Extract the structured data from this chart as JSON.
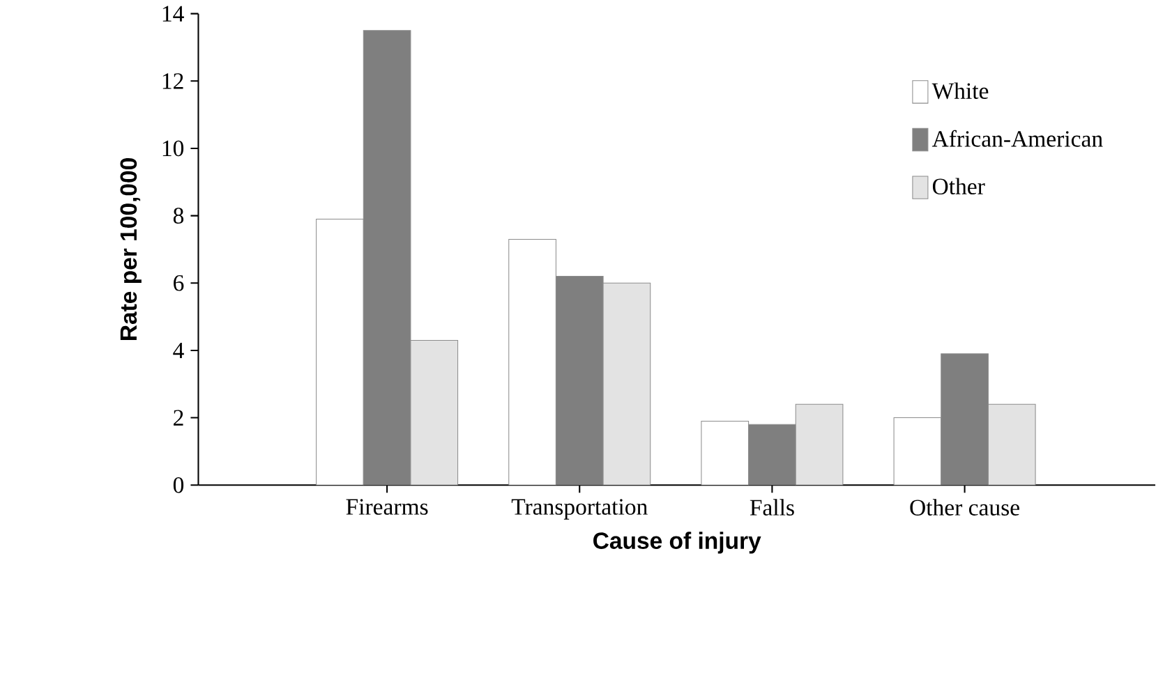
{
  "chart_data": {
    "type": "bar",
    "xlabel": "Cause of injury",
    "ylabel": "Rate per 100,000",
    "categories": [
      "Firearms",
      "Transportation",
      "Falls",
      "Other cause"
    ],
    "series": [
      {
        "name": "White",
        "color": "#ffffff",
        "values": [
          7.9,
          7.3,
          1.9,
          2.0
        ]
      },
      {
        "name": "African-American",
        "color": "#7f7f7f",
        "values": [
          13.5,
          6.2,
          1.8,
          3.9
        ]
      },
      {
        "name": "Other",
        "color": "#e3e3e3",
        "values": [
          4.3,
          6.0,
          2.4,
          2.4
        ]
      }
    ],
    "ylim": [
      0,
      14
    ],
    "yticks": [
      0,
      2,
      4,
      6,
      8,
      10,
      12,
      14
    ],
    "legend": "top right"
  }
}
